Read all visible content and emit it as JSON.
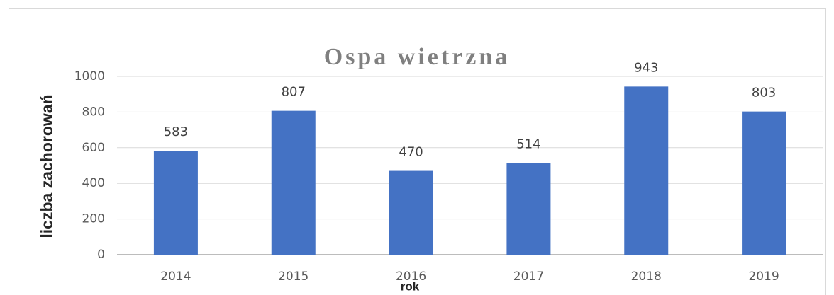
{
  "chart_data": {
    "type": "bar",
    "title": "Ospa wietrzna",
    "x_label": "rok",
    "y_label": "liczba zachorowań",
    "categories": [
      "2014",
      "2015",
      "2016",
      "2017",
      "2018",
      "2019"
    ],
    "values": [
      583,
      807,
      470,
      514,
      943,
      803
    ],
    "color": "#4472c4",
    "ylim": [
      0,
      1000
    ],
    "yticks": [
      0,
      200,
      400,
      600,
      800,
      1000
    ],
    "grid": true
  }
}
